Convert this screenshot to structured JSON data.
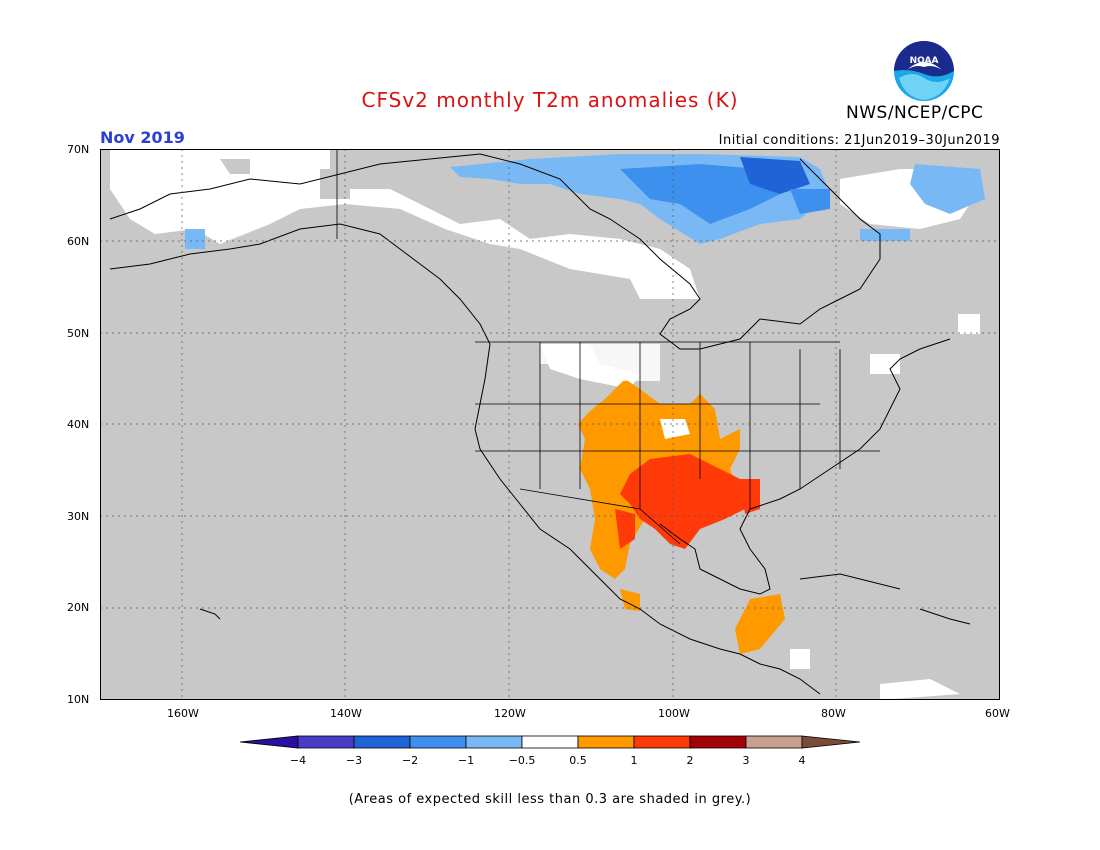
{
  "header": {
    "title": "CFSv2 monthly T2m anomalies (K)",
    "agency": "NWS/NCEP/CPC",
    "logo_text": "NOAA",
    "month": "Nov 2019",
    "initial_conditions": "Initial conditions: 21Jun2019–30Jun2019"
  },
  "map": {
    "lat_labels": [
      "70N",
      "60N",
      "50N",
      "40N",
      "30N",
      "20N",
      "10N"
    ],
    "lon_labels": [
      "160W",
      "140W",
      "120W",
      "100W",
      "80W",
      "60W"
    ],
    "lat_values": [
      70,
      60,
      50,
      40,
      30,
      20,
      10
    ],
    "lon_values": [
      -160,
      -140,
      -120,
      -100,
      -80,
      -60
    ],
    "extent": {
      "lon_min": -170,
      "lon_max": -60,
      "lat_min": 10,
      "lat_max": 70
    },
    "colors": {
      "skill_grey": "#c8c8c8",
      "neutral": "#ffffff",
      "blue_light": "#78b9f5",
      "blue_mid": "#3d90ee",
      "blue_dark": "#1f63d6",
      "orange": "#ff9900",
      "red_orange": "#ff3a08",
      "dark_red": "#a40008"
    }
  },
  "colorbar": {
    "labels": [
      "−4",
      "−3",
      "−2",
      "−1",
      "−0.5",
      "0.5",
      "1",
      "2",
      "3",
      "4"
    ],
    "colors": [
      "#2a10a0",
      "#4a3cc8",
      "#1f63d6",
      "#3d90ee",
      "#78b9f5",
      "#ffffff",
      "#ff9900",
      "#ff3a08",
      "#a40008",
      "#c8a090",
      "#7a4a3a"
    ]
  },
  "footer": {
    "note": "(Areas of expected skill less than 0.3 are shaded in grey.)"
  }
}
